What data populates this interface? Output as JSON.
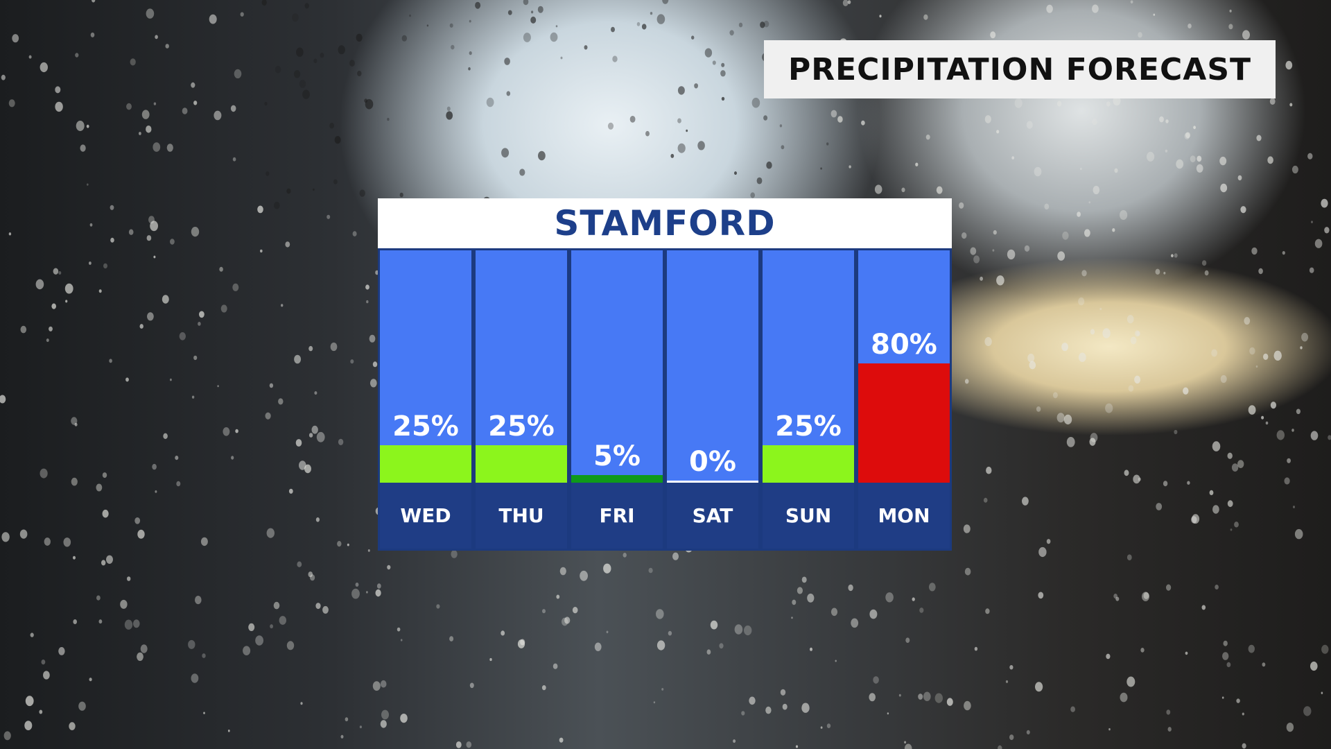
{
  "header": {
    "title": "PRECIPITATION FORECAST"
  },
  "chart_data": {
    "type": "bar",
    "title": "STAMFORD",
    "categories": [
      "WED",
      "THU",
      "FRI",
      "SAT",
      "SUN",
      "MON"
    ],
    "values": [
      25,
      25,
      5,
      0,
      25,
      80
    ],
    "labels": [
      "25%",
      "25%",
      "5%",
      "0%",
      "25%",
      "80%"
    ],
    "bar_colors": [
      "#8cf51c",
      "#8cf51c",
      "#0f9a1a",
      "#ffffff",
      "#8cf51c",
      "#dd0c0c"
    ],
    "ylim": [
      0,
      100
    ],
    "panel_color": "#4779f5",
    "frame_color": "#1c3a7f"
  }
}
